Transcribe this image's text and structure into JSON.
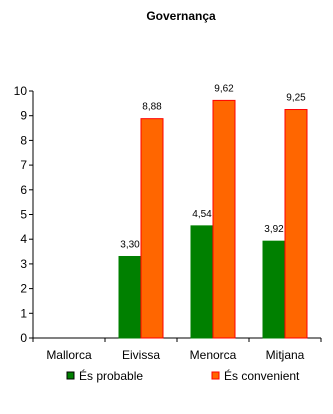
{
  "chart_data": {
    "type": "bar",
    "title": "Governança",
    "categories": [
      "Mallorca",
      "Eivissa",
      "Menorca",
      "Mitjana"
    ],
    "ylim": [
      0,
      10
    ],
    "yticks": [
      0,
      1,
      2,
      3,
      4,
      5,
      6,
      7,
      8,
      9,
      10
    ],
    "grid": false,
    "legend_position": "bottom",
    "series": [
      {
        "name": "És probable",
        "color": "#008000",
        "values": [
          null,
          3.3,
          4.54,
          3.92
        ],
        "labels": [
          "",
          "3,30",
          "4,54",
          "3,92"
        ]
      },
      {
        "name": "És convenient",
        "color": "#FF6600",
        "stroke": "#FF0000",
        "values": [
          null,
          8.88,
          9.62,
          9.25
        ],
        "labels": [
          "",
          "8,88",
          "9,62",
          "9,25"
        ]
      }
    ]
  }
}
